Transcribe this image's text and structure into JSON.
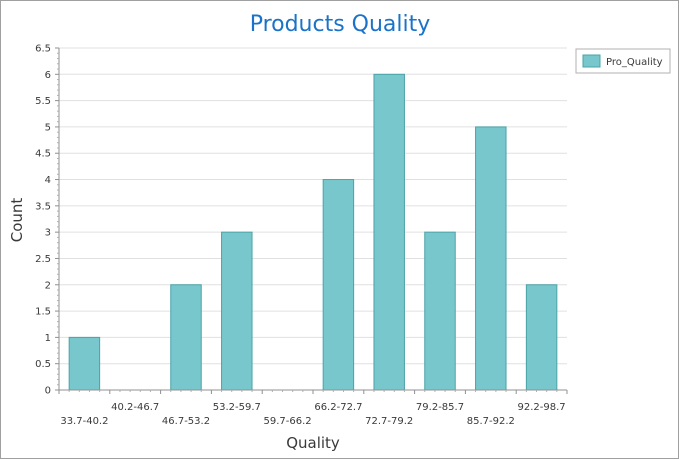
{
  "chart_data": {
    "type": "bar",
    "title": "Products Quality",
    "xlabel": "Quality",
    "ylabel": "Count",
    "categories": [
      "33.7-40.2",
      "40.2-46.7",
      "46.7-53.2",
      "53.2-59.7",
      "59.7-66.2",
      "66.2-72.7",
      "72.7-79.2",
      "79.2-85.7",
      "85.7-92.2",
      "92.2-98.7"
    ],
    "series": [
      {
        "name": "Pro_Quality",
        "values": [
          1,
          0,
          2,
          3,
          0,
          4,
          6,
          3,
          5,
          2
        ]
      }
    ],
    "ylim": [
      0,
      6.5
    ],
    "yticks": [
      "0",
      "0.5",
      "1",
      "1.5",
      "2",
      "2.5",
      "3",
      "3.5",
      "4",
      "4.5",
      "5",
      "5.5",
      "6",
      "6.5"
    ],
    "grid": true,
    "legend_position": "top-right",
    "colors": {
      "bar_fill": "#78c7cc",
      "bar_stroke": "#4aa3a8",
      "title": "#1a73c8",
      "grid": "#e0e0e0"
    }
  }
}
